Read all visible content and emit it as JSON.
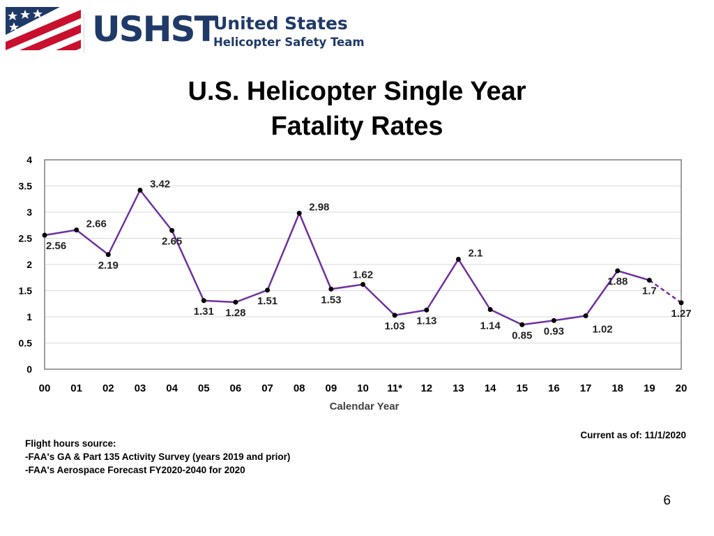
{
  "logo": {
    "abbr": "USHST",
    "line1": "United States",
    "line2": "Helicopter Safety Team",
    "flag_red": "#c8102e",
    "flag_blue": "#1f3a68"
  },
  "title": {
    "line1": "U.S. Helicopter Single Year",
    "line2": "Fatality Rates"
  },
  "chart_data": {
    "type": "line",
    "categories": [
      "00",
      "01",
      "02",
      "03",
      "04",
      "05",
      "06",
      "07",
      "08",
      "09",
      "10",
      "11*",
      "12",
      "13",
      "14",
      "15",
      "16",
      "17",
      "18",
      "19",
      "20"
    ],
    "values": [
      2.56,
      2.66,
      2.19,
      3.42,
      2.65,
      1.31,
      1.28,
      1.51,
      2.98,
      1.53,
      1.62,
      1.03,
      1.13,
      2.1,
      1.14,
      0.85,
      0.93,
      1.02,
      1.88,
      1.7,
      1.27
    ],
    "data_labels": [
      "2.56",
      "2.66",
      "2.19",
      "3.42",
      "2.65",
      "1.31",
      "1.28",
      "1.51",
      "2.98",
      "1.53",
      "1.62",
      "1.03",
      "1.13",
      "2.1",
      "1.14",
      "0.85",
      "0.93",
      "1.02",
      "1.88",
      "1.7",
      "1.27"
    ],
    "label_side": [
      "below",
      "above",
      "below",
      "above",
      "below",
      "below",
      "below",
      "below",
      "above",
      "below",
      "above",
      "below",
      "below",
      "above",
      "above",
      "below",
      "below",
      "above",
      "below",
      "below",
      "below"
    ],
    "dashed_from_index": 19,
    "ylim": [
      0,
      4
    ],
    "yticks": [
      0,
      0.5,
      1,
      1.5,
      2,
      2.5,
      3,
      3.5,
      4
    ],
    "ytick_labels": [
      "0",
      "0.5",
      "1",
      "1.5",
      "2",
      "2.5",
      "3",
      "3.5",
      "4"
    ],
    "xlabel": "Calendar Year",
    "ylabel": "",
    "grid": true,
    "line_color": "#7030a0",
    "marker_color": "#000000"
  },
  "notes": {
    "heading": "Flight hours source:",
    "line1": "-FAA's GA & Part 135 Activity Survey (years 2019 and prior)",
    "line2": "-FAA's Aerospace Forecast FY2020-2040 for 2020"
  },
  "current_as_of": "Current as of:  11/1/2020",
  "page_number": "6"
}
